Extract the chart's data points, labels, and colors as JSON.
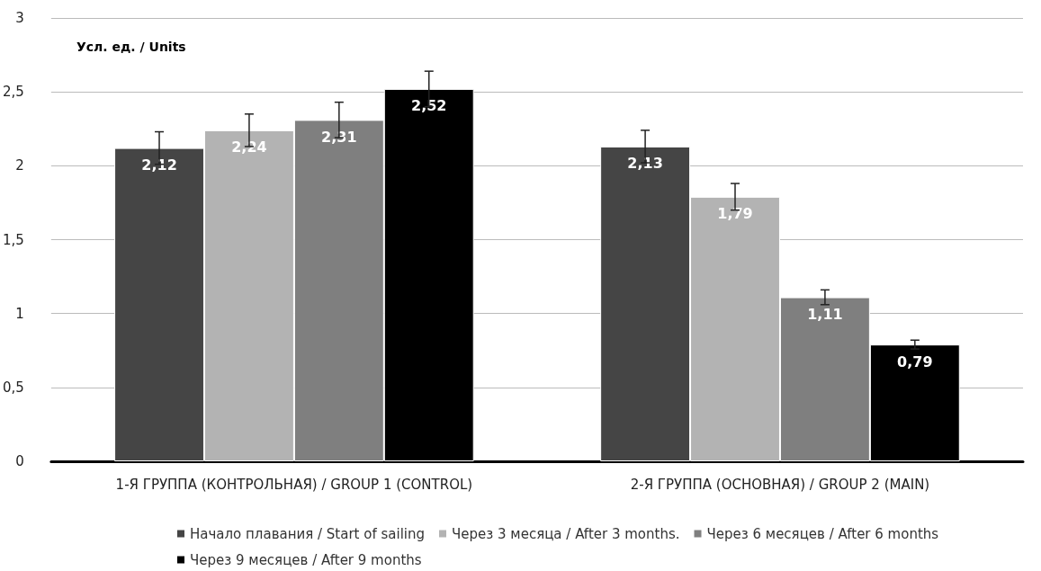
{
  "chart_data": {
    "type": "bar",
    "ylabel": "Усл. ед. / Units",
    "categories": [
      "1-Я ГРУППА (КОНТРОЛЬНАЯ) / GROUP 1 (CONTROL)",
      "2-Я ГРУППА (ОСНОВНАЯ) / GROUP 2 (MAIN)"
    ],
    "series": [
      {
        "name": "Начало плавания / Start of sailing",
        "color": "#454545",
        "values": [
          2.12,
          2.13
        ],
        "errors": [
          0.11,
          0.11
        ],
        "value_labels": [
          "2,12",
          "2,13"
        ]
      },
      {
        "name": "Через 3 месяца / After 3 months.",
        "color": "#b3b3b3",
        "values": [
          2.24,
          1.79
        ],
        "errors": [
          0.11,
          0.09
        ],
        "value_labels": [
          "2,24",
          "1,79"
        ]
      },
      {
        "name": "Через 6 месяцев / After 6 months",
        "color": "#7f7f7f",
        "values": [
          2.31,
          1.11
        ],
        "errors": [
          0.12,
          0.05
        ],
        "value_labels": [
          "2,31",
          "1,11"
        ]
      },
      {
        "name": "Через 9 месяцев / After 9 months",
        "color": "#000000",
        "values": [
          2.52,
          0.79
        ],
        "errors": [
          0.12,
          0.03
        ],
        "value_labels": [
          "2,52",
          "0,79"
        ]
      }
    ],
    "ylim": [
      0,
      3
    ],
    "yticks": [
      0,
      {
        "value": 0.5,
        "label": "0,5"
      },
      1,
      {
        "value": 1.5,
        "label": "1,5"
      },
      2,
      {
        "value": 2.5,
        "label": "2,5"
      },
      3
    ],
    "grid": "y",
    "legend": "bottom"
  }
}
